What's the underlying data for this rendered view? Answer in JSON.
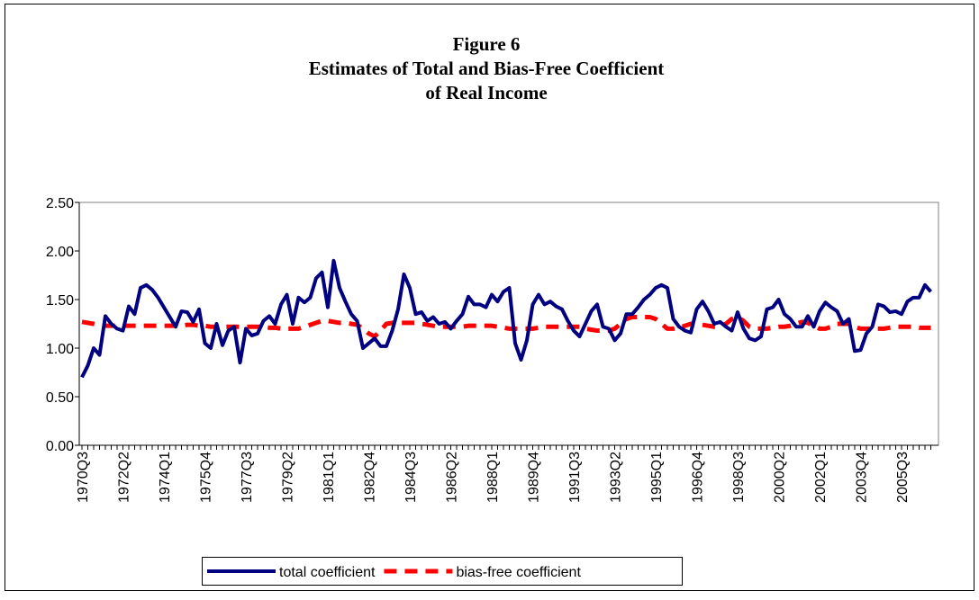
{
  "chart_data": {
    "type": "line",
    "title": [
      "Figure 6",
      "Estimates of Total and Bias-Free Coefficient",
      "of Real Income"
    ],
    "categories": [
      "1970Q3",
      null,
      null,
      null,
      null,
      null,
      null,
      "1972Q2",
      null,
      null,
      null,
      null,
      null,
      null,
      "1974Q1",
      null,
      null,
      null,
      null,
      null,
      null,
      "1975Q4",
      null,
      null,
      null,
      null,
      null,
      null,
      "1977Q3",
      null,
      null,
      null,
      null,
      null,
      null,
      "1979Q2",
      null,
      null,
      null,
      null,
      null,
      null,
      "1981Q1",
      null,
      null,
      null,
      null,
      null,
      null,
      "1982Q4",
      null,
      null,
      null,
      null,
      null,
      null,
      "1984Q3",
      null,
      null,
      null,
      null,
      null,
      null,
      "1986Q2",
      null,
      null,
      null,
      null,
      null,
      null,
      "1988Q1",
      null,
      null,
      null,
      null,
      null,
      null,
      "1989Q4",
      null,
      null,
      null,
      null,
      null,
      null,
      "1991Q3",
      null,
      null,
      null,
      null,
      null,
      null,
      "1993Q2",
      null,
      null,
      null,
      null,
      null,
      null,
      "1995Q1",
      null,
      null,
      null,
      null,
      null,
      null,
      "1996Q4",
      null,
      null,
      null,
      null,
      null,
      null,
      "1998Q3",
      null,
      null,
      null,
      null,
      null,
      null,
      "2000Q2",
      null,
      null,
      null,
      null,
      null,
      null,
      "2002Q1",
      null,
      null,
      null,
      null,
      null,
      null,
      "2003Q4",
      null,
      null,
      null,
      null,
      null,
      null,
      "2005Q3",
      null,
      null,
      null,
      null,
      null
    ],
    "series": [
      {
        "name": "total coefficient",
        "color": "#000080",
        "style": "solid",
        "values": [
          0.7,
          0.82,
          1.0,
          0.93,
          1.33,
          1.25,
          1.2,
          1.18,
          1.43,
          1.35,
          1.62,
          1.65,
          1.6,
          1.52,
          1.42,
          1.32,
          1.22,
          1.38,
          1.37,
          1.27,
          1.4,
          1.05,
          1.0,
          1.25,
          1.03,
          1.18,
          1.22,
          0.85,
          1.2,
          1.13,
          1.15,
          1.28,
          1.33,
          1.25,
          1.45,
          1.55,
          1.25,
          1.52,
          1.47,
          1.52,
          1.72,
          1.78,
          1.42,
          1.9,
          1.62,
          1.48,
          1.35,
          1.28,
          1.0,
          1.05,
          1.1,
          1.02,
          1.02,
          1.18,
          1.4,
          1.76,
          1.62,
          1.35,
          1.37,
          1.28,
          1.32,
          1.25,
          1.27,
          1.2,
          1.28,
          1.35,
          1.53,
          1.45,
          1.45,
          1.42,
          1.55,
          1.48,
          1.58,
          1.62,
          1.05,
          0.88,
          1.08,
          1.45,
          1.55,
          1.45,
          1.48,
          1.43,
          1.4,
          1.28,
          1.18,
          1.12,
          1.25,
          1.38,
          1.45,
          1.22,
          1.2,
          1.08,
          1.15,
          1.35,
          1.35,
          1.42,
          1.5,
          1.55,
          1.62,
          1.65,
          1.62,
          1.3,
          1.22,
          1.18,
          1.16,
          1.4,
          1.48,
          1.38,
          1.25,
          1.27,
          1.22,
          1.18,
          1.37,
          1.2,
          1.1,
          1.08,
          1.12,
          1.4,
          1.42,
          1.5,
          1.35,
          1.3,
          1.22,
          1.22,
          1.33,
          1.22,
          1.38,
          1.47,
          1.42,
          1.38,
          1.25,
          1.3,
          0.97,
          0.98,
          1.15,
          1.22,
          1.45,
          1.43,
          1.37,
          1.38,
          1.35,
          1.48,
          1.52,
          1.52,
          1.65,
          1.58
        ]
      },
      {
        "name": "bias-free coefficient",
        "color": "#ff0000",
        "style": "dashed",
        "values": [
          1.27,
          1.26,
          1.25,
          1.24,
          1.23,
          1.23,
          1.23,
          1.23,
          1.23,
          1.23,
          1.23,
          1.23,
          1.23,
          1.23,
          1.23,
          1.23,
          1.23,
          1.23,
          1.24,
          1.24,
          1.23,
          1.23,
          1.22,
          1.22,
          1.22,
          1.22,
          1.22,
          1.22,
          1.22,
          1.22,
          1.22,
          1.22,
          1.21,
          1.21,
          1.2,
          1.2,
          1.2,
          1.2,
          1.22,
          1.24,
          1.26,
          1.28,
          1.28,
          1.27,
          1.26,
          1.26,
          1.25,
          1.24,
          1.2,
          1.15,
          1.12,
          1.18,
          1.25,
          1.26,
          1.26,
          1.26,
          1.26,
          1.26,
          1.25,
          1.24,
          1.23,
          1.22,
          1.22,
          1.22,
          1.22,
          1.22,
          1.23,
          1.23,
          1.23,
          1.23,
          1.23,
          1.22,
          1.21,
          1.2,
          1.2,
          1.2,
          1.2,
          1.2,
          1.21,
          1.22,
          1.22,
          1.22,
          1.22,
          1.22,
          1.22,
          1.22,
          1.2,
          1.19,
          1.18,
          1.18,
          1.18,
          1.2,
          1.25,
          1.3,
          1.32,
          1.32,
          1.32,
          1.32,
          1.3,
          1.25,
          1.2,
          1.2,
          1.21,
          1.23,
          1.25,
          1.25,
          1.24,
          1.23,
          1.22,
          1.22,
          1.25,
          1.3,
          1.32,
          1.28,
          1.22,
          1.2,
          1.2,
          1.2,
          1.21,
          1.22,
          1.22,
          1.23,
          1.25,
          1.27,
          1.26,
          1.23,
          1.2,
          1.2,
          1.22,
          1.25,
          1.25,
          1.25,
          1.22,
          1.2,
          1.2,
          1.2,
          1.2,
          1.2,
          1.21,
          1.22,
          1.22,
          1.22,
          1.22,
          1.21,
          1.21,
          1.21
        ]
      }
    ],
    "ylim": [
      0,
      2.5
    ],
    "yticks": [
      {
        "value": 0,
        "label": "0.00"
      },
      {
        "value": 0.5,
        "label": "0.50"
      },
      {
        "value": 1,
        "label": "1.00"
      },
      {
        "value": 1.5,
        "label": "1.50"
      },
      {
        "value": 2,
        "label": "2.00"
      },
      {
        "value": 2.5,
        "label": "2.50"
      }
    ],
    "grid": false,
    "legend": "bottom"
  }
}
